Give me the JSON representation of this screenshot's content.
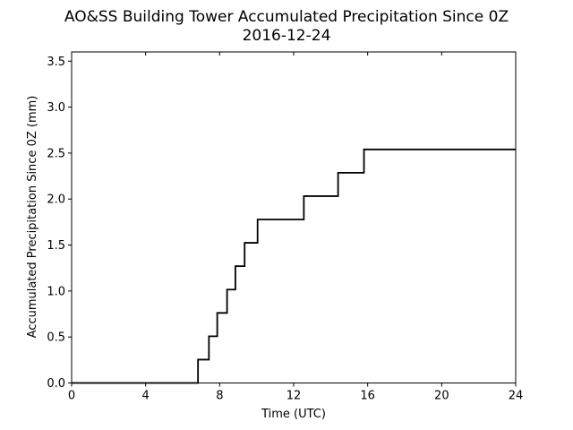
{
  "chart_data": {
    "type": "line",
    "title": "AO&SS Building Tower Accumulated Precipitation Since 0Z",
    "subtitle": "2016-12-24",
    "xlabel": "Time (UTC)",
    "ylabel": "Accumulated Precipitation Since 0Z (mm)",
    "xlim": [
      0,
      24
    ],
    "ylim": [
      0,
      3.6
    ],
    "xticks": [
      0,
      4,
      8,
      12,
      16,
      20,
      24
    ],
    "xtick_labels": [
      "0",
      "4",
      "8",
      "12",
      "16",
      "20",
      "24"
    ],
    "yticks": [
      0.0,
      0.5,
      1.0,
      1.5,
      2.0,
      2.5,
      3.0,
      3.5
    ],
    "ytick_labels": [
      "0.0",
      "0.5",
      "1.0",
      "1.5",
      "2.0",
      "2.5",
      "3.0",
      "3.5"
    ],
    "grid": false,
    "line_color": "#000000",
    "series": [
      {
        "step": "post",
        "x": [
          0,
          6.83,
          7.42,
          7.87,
          8.4,
          8.85,
          9.35,
          10.05,
          12.55,
          14.4,
          15.8,
          24
        ],
        "y": [
          0,
          0.254,
          0.508,
          0.762,
          1.016,
          1.27,
          1.524,
          1.778,
          2.032,
          2.286,
          2.54,
          2.54
        ]
      }
    ]
  }
}
